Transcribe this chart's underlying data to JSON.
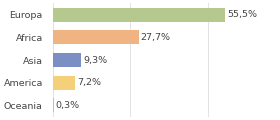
{
  "categories": [
    "Europa",
    "Africa",
    "Asia",
    "America",
    "Oceania"
  ],
  "values": [
    55.5,
    27.7,
    9.3,
    7.2,
    0.3
  ],
  "labels": [
    "55,5%",
    "27,7%",
    "9,3%",
    "7,2%",
    "0,3%"
  ],
  "bar_colors": [
    "#b5c98e",
    "#f0b482",
    "#7b8fc4",
    "#f5d07a",
    "#f0b482"
  ],
  "background_color": "#ffffff",
  "xlim": [
    0,
    72
  ],
  "bar_height": 0.62,
  "label_fontsize": 6.8,
  "tick_fontsize": 6.8,
  "text_color": "#444444",
  "grid_color": "#dddddd",
  "grid_ticks": [
    0,
    25,
    50
  ]
}
